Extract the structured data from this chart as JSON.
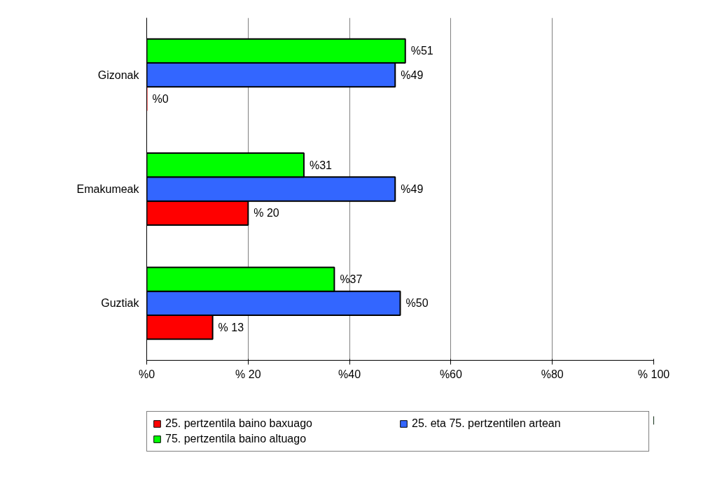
{
  "chart_data": {
    "type": "bar",
    "orientation": "horizontal",
    "categories": [
      "Gizonak",
      "Emakumeak",
      "Guztiak"
    ],
    "series": [
      {
        "name": "25. pertzentila baino baxuago",
        "color": "#ff0000",
        "values": [
          0,
          20,
          13
        ],
        "value_labels": [
          "%0",
          "% 20",
          "% 13"
        ]
      },
      {
        "name": "25. eta 75. pertzentilen artean",
        "color": "#3366ff",
        "values": [
          49,
          49,
          50
        ],
        "value_labels": [
          "%49",
          "%49",
          "%50"
        ]
      },
      {
        "name": "75. pertzentila baino altuago",
        "color": "#00ff00",
        "values": [
          51,
          31,
          37
        ],
        "value_labels": [
          "%51",
          "%31",
          "%37"
        ]
      }
    ],
    "xlim": [
      0,
      100
    ],
    "xticks": [
      {
        "value": 0,
        "label": "%0"
      },
      {
        "value": 20,
        "label": "% 20"
      },
      {
        "value": 40,
        "label": "%40"
      },
      {
        "value": 60,
        "label": "%60"
      },
      {
        "value": 80,
        "label": "%80"
      },
      {
        "value": 100,
        "label": "% 100"
      }
    ],
    "grid": "x",
    "legend": "bottom"
  }
}
